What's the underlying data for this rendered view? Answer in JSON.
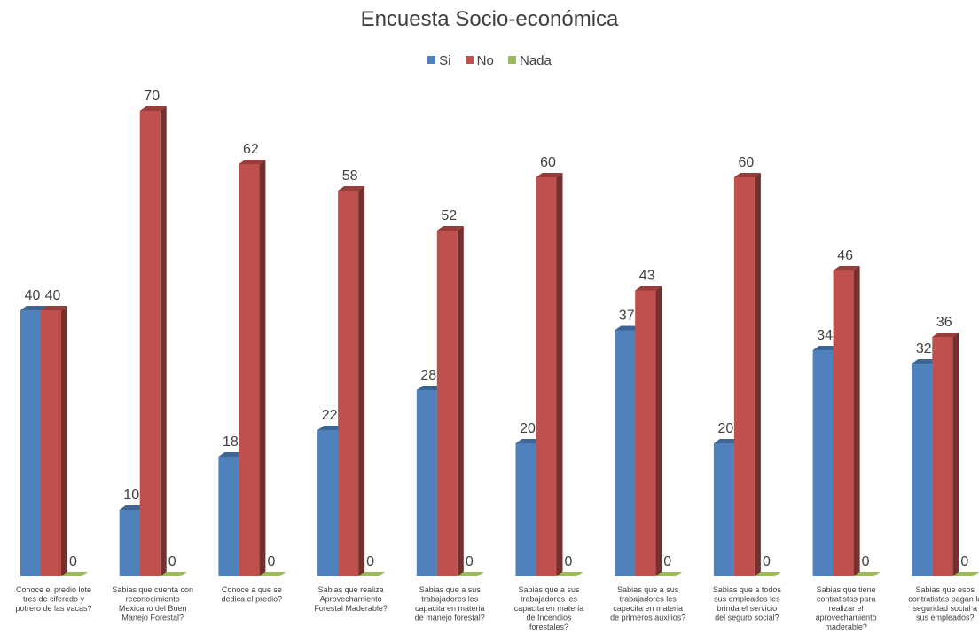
{
  "chart_data": {
    "type": "bar",
    "title": "Encuesta Socio-económica",
    "categories": [
      "Conoce el predio lote tres de ciferedo y potrero de las vacas?",
      "Sabias que cuenta con reconocimiento Mexicano del Buen Manejo Forestal?",
      "Conoce a que se dedica el predio?",
      "Sabias que realiza Aprovechamiento Forestal Maderable?",
      "Sabias que a sus trabajadores les capacita en materia de manejo forestal?",
      "Sabias que a sus trabajadores les capacita en materia de Incendios forestales?",
      "Sabias que a sus trabajadores les capacita en materia de primeros auxilios?",
      "Sabias que a todos sus empleados les brinda el servicio del seguro social?",
      "Sabias que tiene contratistas para realizar el aprovechamiento maderable?",
      "Sabias que esos contratistas pagan la seguridad social a sus empleados?"
    ],
    "series": [
      {
        "name": "Si",
        "color": "#4f81bd",
        "values": [
          40,
          10,
          18,
          22,
          28,
          20,
          37,
          20,
          34,
          32
        ]
      },
      {
        "name": "No",
        "color": "#c0504d",
        "values": [
          40,
          70,
          62,
          58,
          52,
          60,
          43,
          60,
          46,
          36
        ]
      },
      {
        "name": "Nada",
        "color": "#9bbb59",
        "values": [
          0,
          0,
          0,
          0,
          0,
          0,
          0,
          0,
          0,
          0
        ]
      }
    ],
    "xlabel": "",
    "ylabel": "",
    "ylim": [
      0,
      75
    ],
    "grid": false,
    "legend": "top-center",
    "chart_style": "3d-clustered-column"
  }
}
